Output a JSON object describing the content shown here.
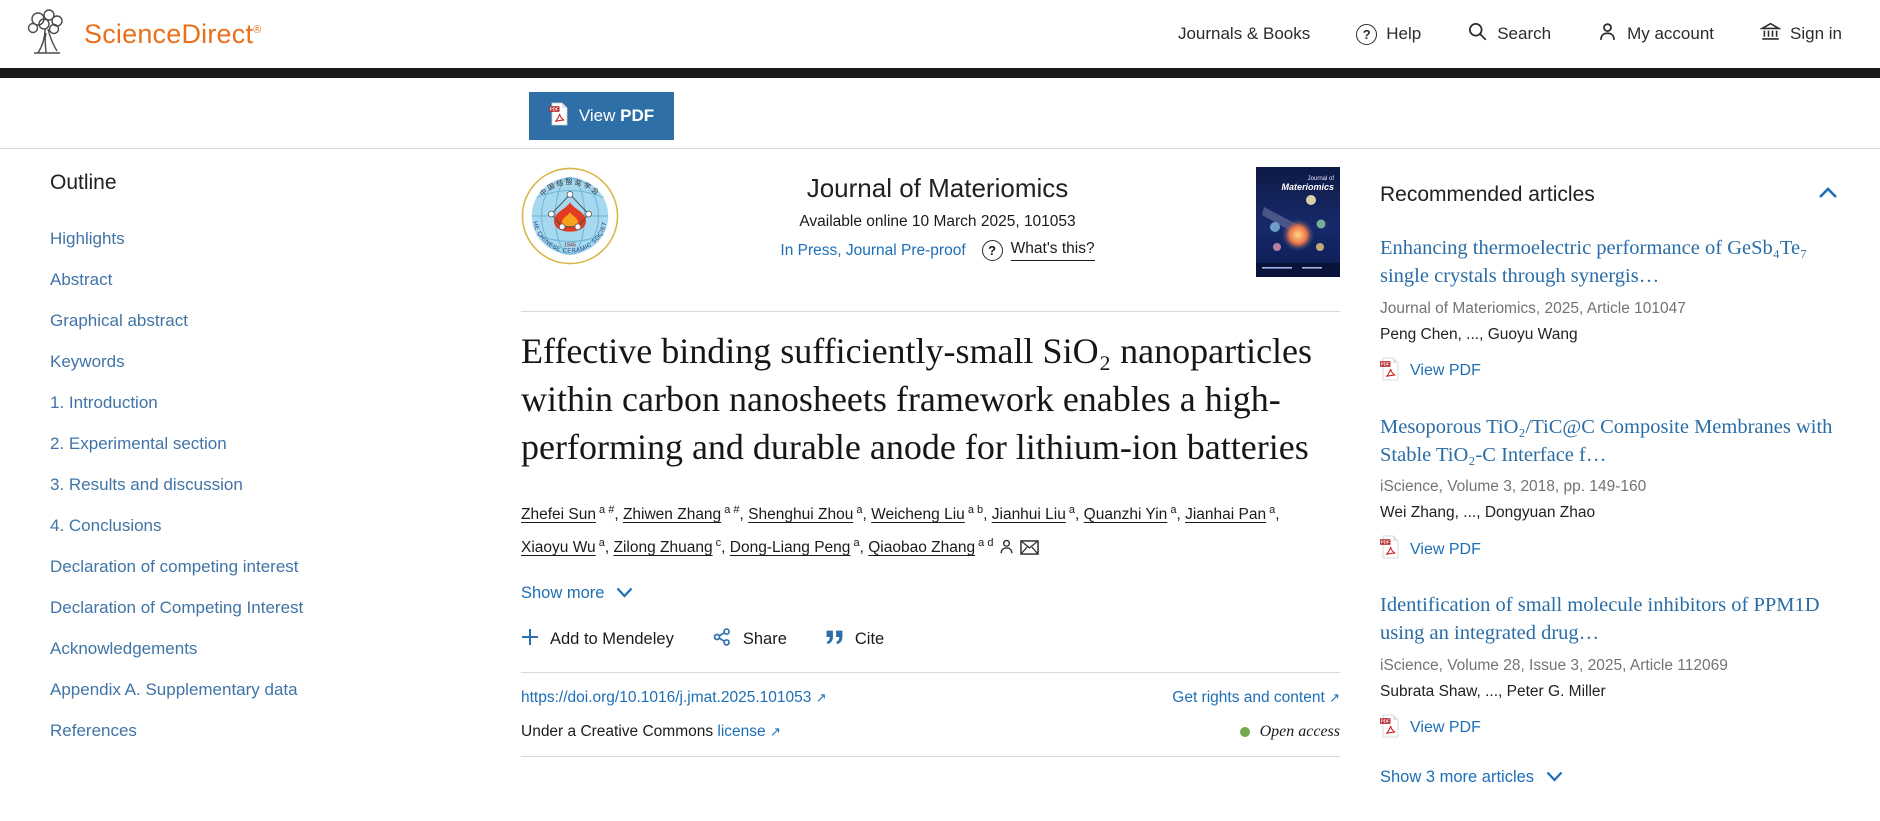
{
  "header": {
    "brand": "ScienceDirect",
    "brand_mark": "®",
    "nav": {
      "journals_books": "Journals & Books",
      "help": "Help",
      "search": "Search",
      "my_account": "My account",
      "sign_in": "Sign in"
    }
  },
  "pdf_bar": {
    "view": "View",
    "pdf": "PDF"
  },
  "outline": {
    "title": "Outline",
    "items": [
      "Highlights",
      "Abstract",
      "Graphical abstract",
      "Keywords",
      "1. Introduction",
      "2. Experimental section",
      "3. Results and discussion",
      "4. Conclusions",
      "Declaration of competing interest",
      "Declaration of Competing Interest",
      "Acknowledgements",
      "Appendix A. Supplementary data",
      "References"
    ]
  },
  "article": {
    "journal_name": "Journal of Materiomics",
    "available": "Available online 10 March 2025, 101053",
    "status": "In Press, Journal Pre-proof",
    "whats_this": "What's this?",
    "question_glyph": "?",
    "title": "Effective binding sufficiently-small SiO₂ nanoparticles within carbon nanosheets framework enables a high-performing and durable anode for lithium-ion batteries",
    "authors": [
      {
        "name": "Zhefei Sun",
        "sup": "a #"
      },
      {
        "name": "Zhiwen Zhang",
        "sup": "a #"
      },
      {
        "name": "Shenghui Zhou",
        "sup": "a"
      },
      {
        "name": "Weicheng Liu",
        "sup": "a b"
      },
      {
        "name": "Jianhui Liu",
        "sup": "a"
      },
      {
        "name": "Quanzhi Yin",
        "sup": "a"
      },
      {
        "name": "Jianhai Pan",
        "sup": "a"
      },
      {
        "name": "Xiaoyu Wu",
        "sup": "a"
      },
      {
        "name": "Zilong Zhuang",
        "sup": "c"
      },
      {
        "name": "Dong-Liang Peng",
        "sup": "a"
      },
      {
        "name": "Qiaobao Zhang",
        "sup": "a d",
        "icons": [
          "person",
          "envelope"
        ]
      }
    ],
    "show_more": "Show more",
    "actions": {
      "mendeley": "Add to Mendeley",
      "share": "Share",
      "cite": "Cite"
    },
    "doi": "https://doi.org/10.1016/j.jmat.2025.101053",
    "rights": "Get rights and content",
    "external_arrow": "↗",
    "license_prefix": "Under a Creative Commons",
    "license_link": "license",
    "open_access": "Open access",
    "logo": {
      "ring_text": "THE CHINESE CERAMIC SOCIETY",
      "cn_text": "中国硅酸盐学会",
      "year": "1945"
    },
    "cover": {
      "line1": "Journal of",
      "line2": "Materiomics"
    }
  },
  "recommended": {
    "title": "Recommended articles",
    "articles": [
      {
        "title": "Enhancing thermoelectric performance of GeSb₄Te₇ single crystals through synergis…",
        "meta": "Journal of Materiomics, 2025, Article 101047",
        "authors": "Peng Chen, ..., Guoyu Wang",
        "action": "View PDF"
      },
      {
        "title": "Mesoporous TiO₂/TiC@C Composite Membranes with Stable TiO₂-C Interface f…",
        "meta": "iScience, Volume 3, 2018, pp. 149-160",
        "authors": "Wei Zhang, ..., Dongyuan Zhao",
        "action": "View PDF"
      },
      {
        "title": "Identification of small molecule inhibitors of PPM1D using an integrated drug…",
        "meta": "iScience, Volume 28, Issue 3, 2025, Article 112069",
        "authors": "Subrata Shaw, ..., Peter G. Miller",
        "action": "View PDF"
      }
    ],
    "show_more": "Show 3 more articles"
  },
  "colors": {
    "brand_orange": "#e9711c",
    "link_blue": "#1e6eb5",
    "button_blue": "#2f6fa7",
    "open_access_green": "#74a84c"
  }
}
